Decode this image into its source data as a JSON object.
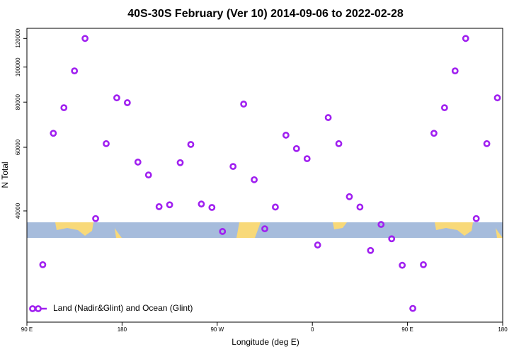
{
  "chart_data": {
    "type": "scatter",
    "title": "40S-30S February (Ver 10)   2014-09-06 to 2022-02-28",
    "xlabel": "Longitude (deg E)",
    "ylabel": "N Total",
    "x": [
      105,
      115,
      125,
      135,
      145,
      155,
      165,
      175,
      185,
      195,
      205,
      215,
      225,
      235,
      245,
      255,
      265,
      275,
      285,
      295,
      305,
      315,
      325,
      335,
      345,
      355,
      365,
      375,
      385,
      395,
      405,
      415,
      425,
      435,
      445,
      455,
      465,
      475,
      485,
      495,
      505,
      515,
      525,
      535
    ],
    "series": [
      {
        "name": "Land (Nadir&Glint) and Ocean (Glint)",
        "color": "#a020f0",
        "values": [
          28400,
          65600,
          77200,
          97600,
          120000,
          38100,
          61400,
          82200,
          79700,
          54600,
          50300,
          41100,
          41600,
          54400,
          61100,
          41800,
          40900,
          35100,
          53100,
          79000,
          48800,
          35700,
          41000,
          64800,
          59500,
          55800,
          32200,
          72500,
          61400,
          43800,
          41000,
          31100,
          36700,
          33500,
          28300,
          21500,
          28400,
          65600,
          77200,
          97600,
          120000,
          38100,
          61400,
          82200
        ]
      }
    ],
    "xlim": [
      90,
      540
    ],
    "xticks": [
      {
        "value": 90,
        "label": "90 E"
      },
      180,
      {
        "value": 270,
        "label": "90 W"
      },
      {
        "value": 360,
        "label": "0"
      },
      {
        "value": 450,
        "label": "90 E"
      },
      180
    ],
    "ylim": [
      19700,
      128000
    ],
    "yticks": [
      40000,
      60000,
      80000,
      100000,
      120000
    ],
    "ylog": true,
    "legend": "bottom-left"
  }
}
